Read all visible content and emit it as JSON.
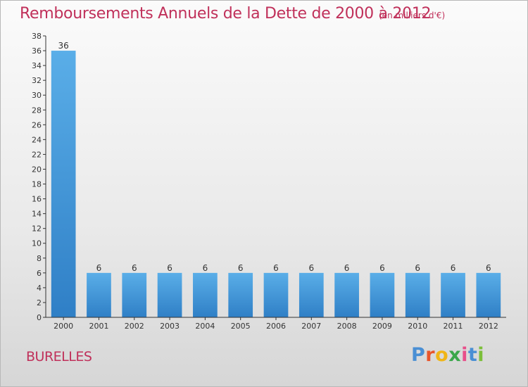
{
  "header": {
    "title": "Remboursements Annuels de la Dette de 2000 à 2012",
    "subtitle": "(en milliers d'€)"
  },
  "footer": {
    "commune": "BURELLES",
    "logo_text": "Proxiti",
    "logo_colors": [
      "#4a8fd4",
      "#e8552b",
      "#f0b516",
      "#3aa74a",
      "#e84f8a",
      "#4a8fd4",
      "#7cbf3a"
    ]
  },
  "chart_data": {
    "type": "bar",
    "title": "Remboursements Annuels de la Dette de 2000 à 2012",
    "subtitle": "(en milliers d'€)",
    "categories": [
      "2000",
      "2001",
      "2002",
      "2003",
      "2004",
      "2005",
      "2006",
      "2007",
      "2008",
      "2009",
      "2010",
      "2011",
      "2012"
    ],
    "values": [
      36,
      6,
      6,
      6,
      6,
      6,
      6,
      6,
      6,
      6,
      6,
      6,
      6
    ],
    "data_labels": [
      "36",
      "6",
      "6",
      "6",
      "6",
      "6",
      "6",
      "6",
      "6",
      "6",
      "6",
      "6",
      "6"
    ],
    "ylim": [
      0,
      38
    ],
    "yticks": [
      0,
      2,
      4,
      6,
      8,
      10,
      12,
      14,
      16,
      18,
      20,
      22,
      24,
      26,
      28,
      30,
      32,
      34,
      36,
      38
    ],
    "grid": false,
    "bar_color_top": "#5aaee8",
    "bar_color_bottom": "#2f7fc6"
  }
}
